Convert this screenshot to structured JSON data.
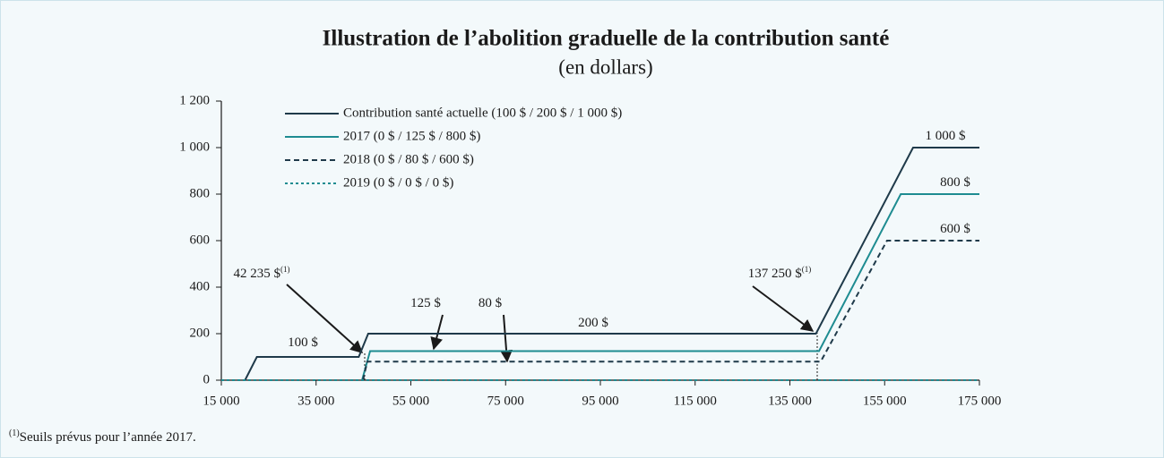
{
  "chart_data": {
    "type": "line",
    "title": "Illustration de l’abolition graduelle de la contribution santé",
    "subtitle": "(en dollars)",
    "xlim": [
      15000,
      175000
    ],
    "xticks": [
      {
        "value": 15000,
        "label": "15 000"
      },
      {
        "value": 35000,
        "label": "35 000"
      },
      {
        "value": 55000,
        "label": "55 000"
      },
      {
        "value": 75000,
        "label": "75 000"
      },
      {
        "value": 95000,
        "label": "95 000"
      },
      {
        "value": 115000,
        "label": "115 000"
      },
      {
        "value": 135000,
        "label": "135 000"
      },
      {
        "value": 155000,
        "label": "155 000"
      },
      {
        "value": 175000,
        "label": "175 000"
      }
    ],
    "ylim": [
      0,
      1200
    ],
    "yticks": [
      0,
      200,
      400,
      600,
      800,
      {
        "value": 1000,
        "label": "1 000"
      },
      {
        "value": 1200,
        "label": "1 200"
      }
    ],
    "series": [
      {
        "name": "Contribution santé actuelle (100 $ / 200 $ / 1 000 $)",
        "color": "#1f3a4a",
        "dash": "solid",
        "x": [
          20000,
          22500,
          44000,
          46000,
          140500,
          161000,
          175000
        ],
        "values": [
          0,
          100,
          100,
          200,
          200,
          1000,
          1000
        ]
      },
      {
        "name": "2017 (0 $ / 125 $ / 800 $)",
        "color": "#1e8c91",
        "dash": "solid",
        "x": [
          44700,
          46400,
          141150,
          158400,
          175000
        ],
        "values": [
          0,
          125,
          125,
          800,
          800
        ]
      },
      {
        "name": "2018 (0 $ / 80 $ / 600 $)",
        "color": "#1f3a4a",
        "dash": "dashed",
        "x": [
          44900,
          45800,
          141500,
          155500,
          175000
        ],
        "values": [
          0,
          80,
          80,
          600,
          600
        ]
      },
      {
        "name": "2019 (0 $ / 0 $ / 0 $)",
        "color": "#1e8c91",
        "dash": "dotted",
        "x": [
          15000,
          175000
        ],
        "values": [
          0,
          0
        ]
      }
    ],
    "annotations": [
      {
        "text": "100 $"
      },
      {
        "text": "42 235 $",
        "sup": "(1)"
      },
      {
        "text": "125 $"
      },
      {
        "text": "80 $"
      },
      {
        "text": "200 $"
      },
      {
        "text": "137 250 $",
        "sup": "(1)"
      },
      {
        "text": "1 000 $"
      },
      {
        "text": "800 $"
      },
      {
        "text": "600 $"
      }
    ],
    "footnote": {
      "sup": "(1)",
      "text": "Seuils prévus pour l’année 2017."
    }
  }
}
